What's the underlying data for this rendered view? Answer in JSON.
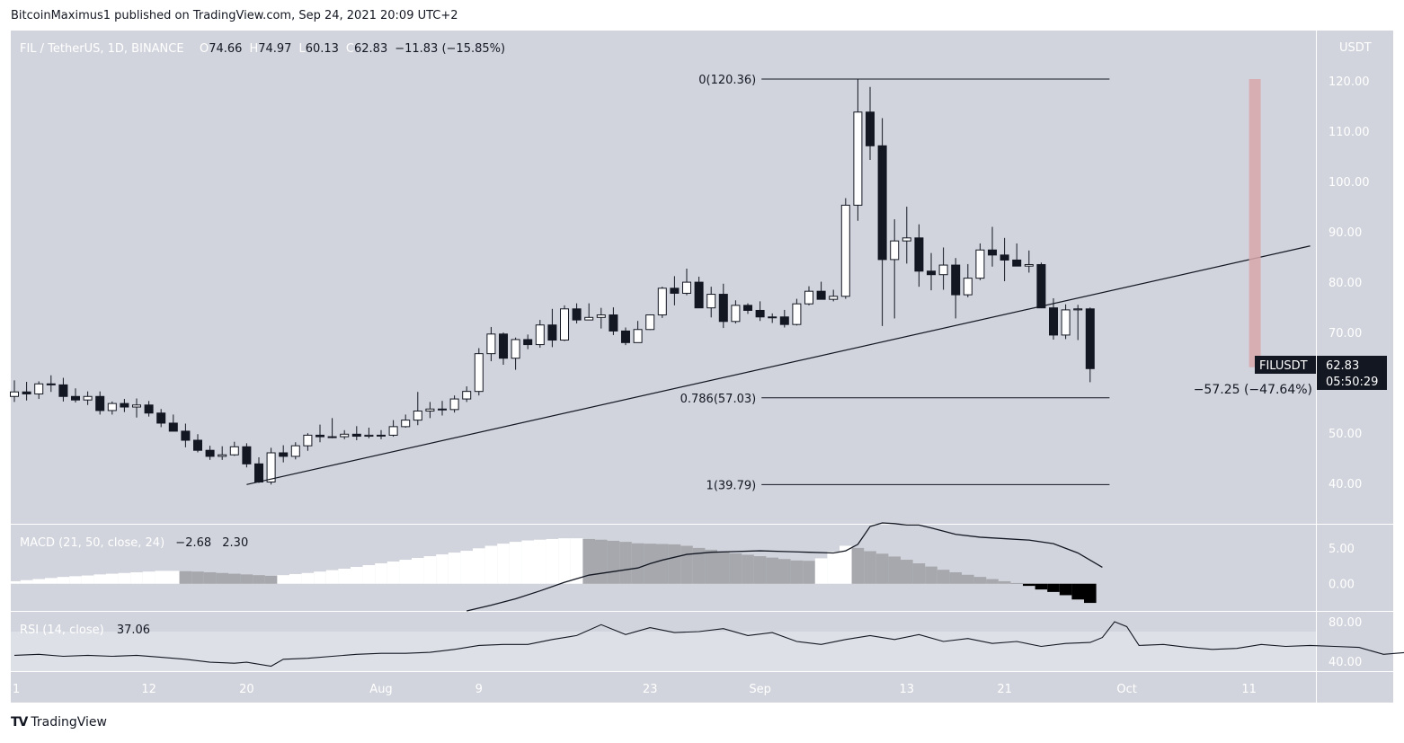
{
  "header": {
    "publisher": "BitcoinMaximus1 published on TradingView.com, Sep 24, 2021 20:09 UTC+2"
  },
  "footer": {
    "logo": "TV",
    "brand": "TradingView"
  },
  "legend": {
    "symbol": "FIL / TetherUS, 1D, BINANCE",
    "ohlc": [
      {
        "k": "O",
        "v": "74.66"
      },
      {
        "k": "H",
        "v": "74.97"
      },
      {
        "k": "L",
        "v": "60.13"
      },
      {
        "k": "C",
        "v": "62.83"
      }
    ],
    "change": "−11.83 (−15.85%)"
  },
  "price_scale": {
    "currency": "USDT"
  },
  "last_price": {
    "ticker": "FILUSDT",
    "price": "62.83",
    "countdown": "05:50:29"
  },
  "measure": {
    "label": "−57.25 (−47.64%)",
    "from": 120.36,
    "to": 63.11
  },
  "colors": {
    "background": "#d1d4dc",
    "up": "#ffffff",
    "down": "#131722",
    "hist_up": "#ffffff",
    "hist_fall": "#a6a8ad",
    "hist_neg": "#000000",
    "measure_bar": "#d8a8ab"
  },
  "chart_data": [
    {
      "type": "candlestick",
      "title": "FIL / TetherUS, 1D, BINANCE",
      "ylabel": "USDT",
      "ylim": [
        32,
        130
      ],
      "x_ticks": [
        "1",
        "12",
        "20",
        "Aug",
        "9",
        "23",
        "Sep",
        "13",
        "21",
        "Oct",
        "11"
      ],
      "x_tick_days": [
        0,
        11,
        19,
        30,
        38,
        52,
        61,
        73,
        81,
        91,
        101
      ],
      "y_ticks": [
        "120.00",
        "110.00",
        "100.00",
        "90.00",
        "80.00",
        "70.00",
        "60.00",
        "50.00",
        "40.00"
      ],
      "y_tick_values": [
        120,
        110,
        100,
        90,
        80,
        70,
        60,
        50,
        40
      ],
      "ohlc_days_from_jul1": [
        0,
        85
      ],
      "candles": [
        [
          57.3,
          60.5,
          56.2,
          58.2
        ],
        [
          58.2,
          60.2,
          56.5,
          57.8
        ],
        [
          57.8,
          60.3,
          56.8,
          59.8
        ],
        [
          59.8,
          61.5,
          58.2,
          59.6
        ],
        [
          59.6,
          61,
          56.3,
          57.3
        ],
        [
          57.3,
          58.9,
          56.1,
          56.6
        ],
        [
          56.6,
          58.3,
          55.6,
          57.3
        ],
        [
          57.3,
          58.3,
          53.7,
          54.5
        ],
        [
          54.5,
          56.3,
          53.7,
          55.9
        ],
        [
          55.9,
          56.8,
          54.2,
          55.2
        ],
        [
          55.2,
          56.9,
          53.1,
          55.6
        ],
        [
          55.6,
          56.4,
          53.3,
          54
        ],
        [
          54,
          54.8,
          51.2,
          52
        ],
        [
          52,
          53.7,
          50.6,
          50.4
        ],
        [
          50.4,
          51.9,
          47.2,
          48.6
        ],
        [
          48.6,
          49.8,
          46.2,
          46.6
        ],
        [
          46.6,
          47.5,
          44.7,
          45.4
        ],
        [
          45.4,
          47.4,
          44.7,
          45.7
        ],
        [
          45.7,
          48.3,
          45.5,
          47.3
        ],
        [
          47.3,
          48,
          43.2,
          43.9
        ],
        [
          43.9,
          45.2,
          40.1,
          40.3
        ],
        [
          40.3,
          47.1,
          39.8,
          46.1
        ],
        [
          46.1,
          47.6,
          44.2,
          45.4
        ],
        [
          45.4,
          48.2,
          44.8,
          47.5
        ],
        [
          47.5,
          50,
          46.5,
          49.6
        ],
        [
          49.6,
          51.7,
          48.2,
          49.3
        ],
        [
          49.3,
          53,
          49,
          49.3
        ],
        [
          49.3,
          50.6,
          48.8,
          49.8
        ],
        [
          49.8,
          51.4,
          48.6,
          49.4
        ],
        [
          49.4,
          51.1,
          49,
          49.6
        ],
        [
          49.6,
          50.6,
          48.8,
          49.6
        ],
        [
          49.6,
          52.6,
          49.3,
          51.3
        ],
        [
          51.3,
          53.7,
          51.1,
          52.6
        ],
        [
          52.6,
          58.2,
          51.6,
          54.4
        ],
        [
          54.4,
          56.2,
          53,
          54.8
        ],
        [
          54.8,
          56.4,
          53.5,
          54.7
        ],
        [
          54.7,
          57.5,
          54.1,
          56.8
        ],
        [
          56.8,
          59.3,
          56.2,
          58.3
        ],
        [
          58.3,
          66.9,
          57.5,
          65.8
        ],
        [
          65.8,
          71.1,
          64.3,
          69.7
        ],
        [
          69.7,
          70,
          63.6,
          64.9
        ],
        [
          64.9,
          69,
          62.6,
          68.6
        ],
        [
          68.6,
          69.6,
          66.7,
          67.6
        ],
        [
          67.6,
          72.5,
          67,
          71.5
        ],
        [
          71.5,
          74.7,
          67.1,
          68.5
        ],
        [
          68.5,
          75.4,
          68.3,
          74.7
        ],
        [
          74.7,
          75.8,
          71.8,
          72.5
        ],
        [
          72.5,
          75.8,
          72.5,
          73
        ],
        [
          73,
          74.9,
          70.8,
          73.5
        ],
        [
          73.5,
          75,
          69.5,
          70.3
        ],
        [
          70.3,
          71,
          67.5,
          68
        ],
        [
          68,
          72.3,
          68,
          70.6
        ],
        [
          70.6,
          73.6,
          70.5,
          73.5
        ],
        [
          73.5,
          79.1,
          72.9,
          78.8
        ],
        [
          78.8,
          81.2,
          75.4,
          77.8
        ],
        [
          77.8,
          82.7,
          77.4,
          80
        ],
        [
          80,
          81.1,
          74.9,
          74.9
        ],
        [
          74.9,
          79.1,
          73,
          77.6
        ],
        [
          77.6,
          79.7,
          70.9,
          72.2
        ],
        [
          72.2,
          76.4,
          71.8,
          75.4
        ],
        [
          75.4,
          75.8,
          73.7,
          74.4
        ],
        [
          74.4,
          76.2,
          72.3,
          73.1
        ],
        [
          73.1,
          73.8,
          71.9,
          73.1
        ],
        [
          73.1,
          74.5,
          71,
          71.6
        ],
        [
          71.6,
          76.7,
          71.4,
          75.7
        ],
        [
          75.7,
          79.2,
          75.4,
          78.2
        ],
        [
          78.2,
          80.1,
          77,
          76.6
        ],
        [
          76.6,
          78.5,
          76.2,
          77.2
        ],
        [
          77.2,
          96.7,
          76.7,
          95.3
        ],
        [
          95.3,
          120.4,
          92.2,
          113.8
        ],
        [
          113.8,
          118.8,
          104.3,
          107.1
        ],
        [
          107.1,
          112.6,
          71.3,
          84.5
        ],
        [
          84.5,
          92.5,
          72.8,
          88.2
        ],
        [
          88.2,
          95,
          83.7,
          88.8
        ],
        [
          88.8,
          91.5,
          79.1,
          82.2
        ],
        [
          82.2,
          85.8,
          78.4,
          81.5
        ],
        [
          81.5,
          86.9,
          78.5,
          83.4
        ],
        [
          83.4,
          84.8,
          72.8,
          77.5
        ],
        [
          77.5,
          83.6,
          77,
          80.8
        ],
        [
          80.8,
          87.7,
          80.4,
          86.4
        ],
        [
          86.4,
          91,
          83.1,
          85.4
        ],
        [
          85.4,
          88.8,
          80.2,
          84.4
        ],
        [
          84.4,
          87.7,
          83.9,
          83.2
        ],
        [
          83.2,
          86.3,
          81.9,
          83.5
        ],
        [
          83.5,
          83.9,
          74.9,
          74.9
        ],
        [
          74.9,
          76.8,
          68.6,
          69.5
        ],
        [
          69.5,
          75.6,
          68.7,
          74.5
        ],
        [
          74.5,
          75.5,
          68.5,
          74.7
        ],
        [
          74.7,
          74.97,
          60.13,
          62.83
        ]
      ],
      "trendline": [
        [
          19,
          39.8
        ],
        [
          106,
          87.2
        ]
      ],
      "fibonacci": [
        {
          "label": "0(120.36)",
          "value": 120.36
        },
        {
          "label": "0.786(57.03)",
          "value": 57.03
        },
        {
          "label": "1(39.79)",
          "value": 39.79
        }
      ],
      "fib_range_days": [
        62,
        89
      ]
    },
    {
      "type": "histogram+line",
      "title": "MACD (21, 50, close, 24)",
      "values_label": [
        "−2.68",
        "2.30"
      ],
      "ylim": [
        -3.8,
        8
      ],
      "y_ticks": [
        "5.00",
        "0.00"
      ],
      "y_tick_values": [
        5,
        0
      ],
      "histogram": [
        0.35,
        0.5,
        0.65,
        0.8,
        0.95,
        1.05,
        1.15,
        1.3,
        1.4,
        1.5,
        1.6,
        1.7,
        1.8,
        1.8,
        1.75,
        1.7,
        1.6,
        1.5,
        1.4,
        1.3,
        1.2,
        1.1,
        1.2,
        1.35,
        1.5,
        1.7,
        1.9,
        2.1,
        2.35,
        2.6,
        2.85,
        3.1,
        3.35,
        3.6,
        3.85,
        4.1,
        4.35,
        4.6,
        4.95,
        5.3,
        5.6,
        5.85,
        6.05,
        6.15,
        6.25,
        6.35,
        6.35,
        6.25,
        6.15,
        6.0,
        5.85,
        5.65,
        5.6,
        5.55,
        5.5,
        5.3,
        5.0,
        4.75,
        4.45,
        4.25,
        4.05,
        3.85,
        3.65,
        3.45,
        3.25,
        3.2,
        3.55,
        4.5,
        5.3,
        5.0,
        4.55,
        4.2,
        3.8,
        3.35,
        2.85,
        2.4,
        1.95,
        1.6,
        1.25,
        0.95,
        0.65,
        0.35,
        0.1,
        -0.3,
        -0.8,
        -1.15,
        -1.6,
        -2.2,
        -2.68
      ],
      "macd_line": [
        [
          37,
          -3.8
        ],
        [
          39,
          -3.0
        ],
        [
          41,
          -2.1
        ],
        [
          43,
          -1.0
        ],
        [
          45,
          0.2
        ],
        [
          47,
          1.2
        ],
        [
          49,
          1.7
        ],
        [
          51,
          2.2
        ],
        [
          52,
          2.8
        ],
        [
          53,
          3.3
        ],
        [
          55,
          4.1
        ],
        [
          57,
          4.4
        ],
        [
          59,
          4.5
        ],
        [
          61,
          4.6
        ],
        [
          63,
          4.5
        ],
        [
          65,
          4.4
        ],
        [
          67,
          4.3
        ],
        [
          68,
          4.6
        ],
        [
          69,
          5.5
        ],
        [
          70,
          8.0
        ],
        [
          71,
          8.5
        ],
        [
          72,
          8.4
        ],
        [
          73,
          8.2
        ],
        [
          74,
          8.2
        ],
        [
          75,
          7.8
        ],
        [
          77,
          6.9
        ],
        [
          79,
          6.5
        ],
        [
          81,
          6.3
        ],
        [
          83,
          6.1
        ],
        [
          85,
          5.6
        ],
        [
          87,
          4.3
        ],
        [
          89,
          2.3
        ]
      ],
      "hist_color_pattern": "rising white / falling grey / negative black"
    },
    {
      "type": "line",
      "title": "RSI (14, close)",
      "value_label": "37.06",
      "ylim": [
        30,
        90
      ],
      "y_ticks": [
        "80.00",
        "40.00"
      ],
      "y_tick_values": [
        80,
        40
      ],
      "band": [
        30,
        70
      ],
      "rsi": [
        [
          0,
          46
        ],
        [
          2,
          47
        ],
        [
          4,
          45
        ],
        [
          6,
          46
        ],
        [
          8,
          45
        ],
        [
          10,
          46
        ],
        [
          12,
          44
        ],
        [
          14,
          42
        ],
        [
          16,
          39
        ],
        [
          18,
          38
        ],
        [
          19,
          39
        ],
        [
          21,
          35
        ],
        [
          22,
          42
        ],
        [
          24,
          43
        ],
        [
          26,
          45
        ],
        [
          28,
          47
        ],
        [
          30,
          48
        ],
        [
          32,
          48
        ],
        [
          34,
          49
        ],
        [
          36,
          52
        ],
        [
          38,
          56
        ],
        [
          40,
          57
        ],
        [
          42,
          57
        ],
        [
          44,
          62
        ],
        [
          46,
          66
        ],
        [
          48,
          77
        ],
        [
          50,
          67
        ],
        [
          52,
          74
        ],
        [
          54,
          69
        ],
        [
          56,
          70
        ],
        [
          58,
          73
        ],
        [
          60,
          66
        ],
        [
          62,
          69
        ],
        [
          64,
          60
        ],
        [
          66,
          57
        ],
        [
          68,
          62
        ],
        [
          70,
          66
        ],
        [
          72,
          62
        ],
        [
          74,
          67
        ],
        [
          76,
          60
        ],
        [
          78,
          63
        ],
        [
          80,
          58
        ],
        [
          82,
          60
        ],
        [
          84,
          55
        ],
        [
          86,
          58
        ],
        [
          88,
          59
        ],
        [
          89,
          64
        ],
        [
          90,
          80
        ],
        [
          91,
          75
        ],
        [
          92,
          56
        ],
        [
          94,
          57
        ],
        [
          96,
          54
        ],
        [
          98,
          52
        ],
        [
          100,
          53
        ],
        [
          102,
          57
        ],
        [
          104,
          55
        ],
        [
          106,
          56
        ],
        [
          108,
          55
        ],
        [
          110,
          54
        ],
        [
          112,
          47
        ],
        [
          114,
          49
        ],
        [
          116,
          47
        ],
        [
          117,
          37
        ]
      ]
    }
  ]
}
